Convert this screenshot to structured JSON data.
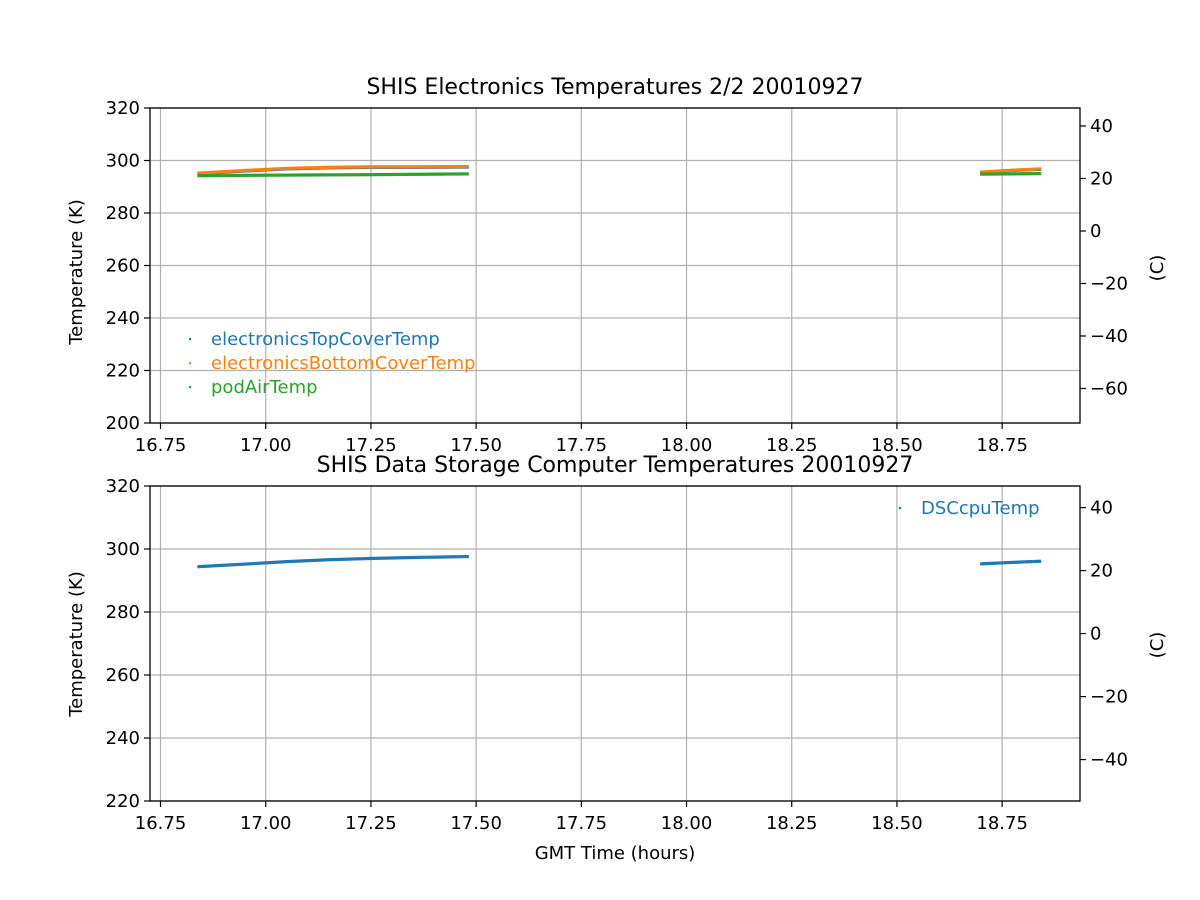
{
  "chart_data": [
    {
      "type": "scatter",
      "title": "SHIS Electronics Temperatures 2/2 20010927",
      "xlabel": "",
      "ylabel": "Temperature (K)",
      "y2label": "(C)",
      "xlim": [
        16.725,
        18.935
      ],
      "ylim": [
        200,
        320
      ],
      "y2lim": [
        -73.15,
        46.85
      ],
      "xticks": [
        "16.75",
        "17.00",
        "17.25",
        "17.50",
        "17.75",
        "18.00",
        "18.25",
        "18.50",
        "18.75"
      ],
      "yticks": [
        "200",
        "220",
        "240",
        "260",
        "280",
        "300",
        "320"
      ],
      "y2ticks": [
        "−60",
        "−40",
        "−20",
        "0",
        "20",
        "40"
      ],
      "grid": true,
      "legend": "lower-left",
      "series": [
        {
          "name": "electronicsTopCoverTemp",
          "color": "#1f77b4",
          "segments": [
            {
              "x": [
                16.84,
                16.95,
                17.05,
                17.15,
                17.25,
                17.35,
                17.48
              ],
              "y": [
                295.0,
                296.0,
                296.8,
                297.2,
                297.4,
                297.4,
                297.5
              ]
            },
            {
              "x": [
                18.7,
                18.75,
                18.8,
                18.84
              ],
              "y": [
                295.5,
                296.0,
                296.4,
                296.6
              ]
            }
          ]
        },
        {
          "name": "electronicsBottomCoverTemp",
          "color": "#ff7f0e",
          "segments": [
            {
              "x": [
                16.84,
                16.95,
                17.05,
                17.15,
                17.25,
                17.35,
                17.48
              ],
              "y": [
                295.2,
                296.2,
                297.0,
                297.4,
                297.6,
                297.6,
                297.7
              ]
            },
            {
              "x": [
                18.7,
                18.75,
                18.8,
                18.84
              ],
              "y": [
                295.6,
                296.1,
                296.5,
                296.8
              ]
            }
          ]
        },
        {
          "name": "podAirTemp",
          "color": "#2ca02c",
          "segments": [
            {
              "x": [
                16.84,
                17.0,
                17.25,
                17.48
              ],
              "y": [
                294.2,
                294.4,
                294.6,
                294.9
              ]
            },
            {
              "x": [
                18.7,
                18.77,
                18.84
              ],
              "y": [
                294.8,
                294.9,
                295.0
              ]
            }
          ]
        }
      ]
    },
    {
      "type": "scatter",
      "title": "SHIS Data Storage Computer Temperatures 20010927",
      "xlabel": "GMT Time (hours)",
      "ylabel": "Temperature (K)",
      "y2label": "(C)",
      "xlim": [
        16.725,
        18.935
      ],
      "ylim": [
        220,
        320
      ],
      "y2lim": [
        -53.15,
        46.85
      ],
      "xticks": [
        "16.75",
        "17.00",
        "17.25",
        "17.50",
        "17.75",
        "18.00",
        "18.25",
        "18.50",
        "18.75"
      ],
      "yticks": [
        "220",
        "240",
        "260",
        "280",
        "300",
        "320"
      ],
      "y2ticks": [
        "−40",
        "−20",
        "0",
        "20",
        "40"
      ],
      "grid": true,
      "legend": "upper-right",
      "series": [
        {
          "name": "DSCcpuTemp",
          "color": "#1f77b4",
          "segments": [
            {
              "x": [
                16.84,
                16.95,
                17.05,
                17.15,
                17.25,
                17.35,
                17.48
              ],
              "y": [
                294.4,
                295.2,
                296.0,
                296.6,
                297.0,
                297.3,
                297.6
              ]
            },
            {
              "x": [
                18.7,
                18.75,
                18.8,
                18.84
              ],
              "y": [
                295.3,
                295.6,
                295.9,
                296.1
              ]
            }
          ]
        }
      ]
    }
  ]
}
